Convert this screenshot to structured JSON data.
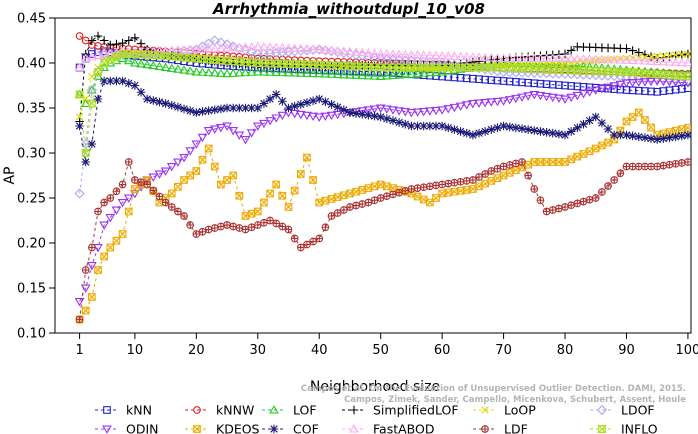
{
  "chart_data": {
    "type": "line",
    "title": "Arrhythmia_withoutdupl_10_v08",
    "xlabel": "Neighborhood size",
    "ylabel": "AP",
    "xlim": [
      1,
      100
    ],
    "ylim": [
      0.1,
      0.45
    ],
    "x_ticks": [
      1,
      10,
      20,
      30,
      40,
      50,
      60,
      70,
      80,
      90,
      100
    ],
    "y_ticks": [
      0.1,
      0.15,
      0.2,
      0.25,
      0.3,
      0.35,
      0.4,
      0.45
    ],
    "y_tick_labels": [
      "0.10",
      "0.15",
      "0.20",
      "0.25",
      "0.30",
      "0.35",
      "0.40",
      "0.45"
    ],
    "grid": false,
    "legend_position": "bottom",
    "watermark": [
      "Campos et al. On the Evaluation of Unsupervised Outlier Detection. DAMI, 2015.",
      "Campos, Zimek, Sander, Campello, Micenkova, Schubert, Assent, Houle"
    ],
    "series": [
      {
        "name": "kNN",
        "color": "#2222cc",
        "marker": "square",
        "points": [
          [
            1,
            0.395
          ],
          [
            2,
            0.405
          ],
          [
            3,
            0.41
          ],
          [
            4,
            0.412
          ],
          [
            5,
            0.413
          ],
          [
            6,
            0.412
          ],
          [
            8,
            0.41
          ],
          [
            10,
            0.408
          ],
          [
            15,
            0.405
          ],
          [
            20,
            0.4
          ],
          [
            25,
            0.397
          ],
          [
            30,
            0.395
          ],
          [
            40,
            0.392
          ],
          [
            50,
            0.39
          ],
          [
            60,
            0.385
          ],
          [
            70,
            0.38
          ],
          [
            80,
            0.375
          ],
          [
            90,
            0.37
          ],
          [
            95,
            0.368
          ],
          [
            100,
            0.372
          ]
        ]
      },
      {
        "name": "kNNW",
        "color": "#dd2222",
        "marker": "circle",
        "points": [
          [
            1,
            0.43
          ],
          [
            2,
            0.425
          ],
          [
            3,
            0.42
          ],
          [
            5,
            0.418
          ],
          [
            10,
            0.415
          ],
          [
            15,
            0.413
          ],
          [
            20,
            0.41
          ],
          [
            25,
            0.408
          ],
          [
            30,
            0.405
          ],
          [
            40,
            0.402
          ],
          [
            50,
            0.4
          ],
          [
            60,
            0.398
          ],
          [
            70,
            0.395
          ],
          [
            80,
            0.393
          ],
          [
            90,
            0.39
          ],
          [
            100,
            0.388
          ]
        ]
      },
      {
        "name": "LOF",
        "color": "#22cc22",
        "marker": "triangle",
        "points": [
          [
            1,
            0.365
          ],
          [
            2,
            0.355
          ],
          [
            3,
            0.37
          ],
          [
            4,
            0.385
          ],
          [
            5,
            0.395
          ],
          [
            6,
            0.4
          ],
          [
            8,
            0.405
          ],
          [
            10,
            0.4
          ],
          [
            15,
            0.395
          ],
          [
            20,
            0.39
          ],
          [
            25,
            0.388
          ],
          [
            30,
            0.39
          ],
          [
            40,
            0.388
          ],
          [
            50,
            0.385
          ],
          [
            60,
            0.39
          ],
          [
            70,
            0.4
          ],
          [
            80,
            0.398
          ],
          [
            90,
            0.392
          ],
          [
            100,
            0.387
          ]
        ]
      },
      {
        "name": "SimplifiedLOF",
        "color": "#000000",
        "marker": "plus",
        "points": [
          [
            1,
            0.335
          ],
          [
            2,
            0.41
          ],
          [
            3,
            0.425
          ],
          [
            4,
            0.43
          ],
          [
            5,
            0.425
          ],
          [
            6,
            0.42
          ],
          [
            8,
            0.422
          ],
          [
            10,
            0.428
          ],
          [
            12,
            0.415
          ],
          [
            15,
            0.41
          ],
          [
            20,
            0.405
          ],
          [
            25,
            0.4
          ],
          [
            30,
            0.398
          ],
          [
            40,
            0.396
          ],
          [
            50,
            0.398
          ],
          [
            60,
            0.397
          ],
          [
            70,
            0.405
          ],
          [
            80,
            0.41
          ],
          [
            82,
            0.418
          ],
          [
            90,
            0.416
          ],
          [
            95,
            0.405
          ],
          [
            100,
            0.41
          ]
        ]
      },
      {
        "name": "LoOP",
        "color": "#dddd00",
        "marker": "x",
        "points": [
          [
            1,
            0.34
          ],
          [
            2,
            0.36
          ],
          [
            3,
            0.385
          ],
          [
            5,
            0.405
          ],
          [
            8,
            0.41
          ],
          [
            10,
            0.41
          ],
          [
            15,
            0.408
          ],
          [
            20,
            0.405
          ],
          [
            30,
            0.4
          ],
          [
            40,
            0.398
          ],
          [
            50,
            0.395
          ],
          [
            60,
            0.393
          ],
          [
            70,
            0.398
          ],
          [
            80,
            0.4
          ],
          [
            90,
            0.405
          ],
          [
            100,
            0.41
          ]
        ]
      },
      {
        "name": "LDOF",
        "color": "#aaaaee",
        "marker": "diamond",
        "points": [
          [
            1,
            0.255
          ],
          [
            2,
            0.31
          ],
          [
            3,
            0.37
          ],
          [
            5,
            0.41
          ],
          [
            10,
            0.41
          ],
          [
            15,
            0.412
          ],
          [
            20,
            0.415
          ],
          [
            23,
            0.425
          ],
          [
            30,
            0.41
          ],
          [
            40,
            0.415
          ],
          [
            45,
            0.41
          ],
          [
            50,
            0.405
          ],
          [
            60,
            0.4
          ],
          [
            70,
            0.39
          ],
          [
            80,
            0.388
          ],
          [
            90,
            0.385
          ],
          [
            100,
            0.38
          ]
        ]
      },
      {
        "name": "ODIN",
        "color": "#9933ee",
        "marker": "triangle-down",
        "points": [
          [
            1,
            0.135
          ],
          [
            2,
            0.15
          ],
          [
            3,
            0.175
          ],
          [
            4,
            0.195
          ],
          [
            5,
            0.22
          ],
          [
            8,
            0.245
          ],
          [
            10,
            0.255
          ],
          [
            12,
            0.27
          ],
          [
            15,
            0.28
          ],
          [
            18,
            0.295
          ],
          [
            20,
            0.31
          ],
          [
            22,
            0.325
          ],
          [
            25,
            0.33
          ],
          [
            28,
            0.315
          ],
          [
            30,
            0.33
          ],
          [
            35,
            0.345
          ],
          [
            40,
            0.34
          ],
          [
            45,
            0.345
          ],
          [
            50,
            0.35
          ],
          [
            55,
            0.345
          ],
          [
            60,
            0.348
          ],
          [
            65,
            0.355
          ],
          [
            70,
            0.358
          ],
          [
            75,
            0.365
          ],
          [
            80,
            0.36
          ],
          [
            85,
            0.37
          ],
          [
            90,
            0.378
          ],
          [
            95,
            0.38
          ],
          [
            100,
            0.378
          ]
        ]
      },
      {
        "name": "KDEOS",
        "color": "#eeaa00",
        "marker": "square-x",
        "points": [
          [
            1,
            0.115
          ],
          [
            2,
            0.125
          ],
          [
            3,
            0.14
          ],
          [
            4,
            0.17
          ],
          [
            5,
            0.185
          ],
          [
            6,
            0.195
          ],
          [
            8,
            0.21
          ],
          [
            10,
            0.26
          ],
          [
            12,
            0.27
          ],
          [
            14,
            0.245
          ],
          [
            16,
            0.255
          ],
          [
            18,
            0.27
          ],
          [
            20,
            0.28
          ],
          [
            22,
            0.305
          ],
          [
            24,
            0.265
          ],
          [
            26,
            0.275
          ],
          [
            28,
            0.23
          ],
          [
            30,
            0.235
          ],
          [
            33,
            0.265
          ],
          [
            35,
            0.24
          ],
          [
            38,
            0.295
          ],
          [
            40,
            0.245
          ],
          [
            45,
            0.255
          ],
          [
            50,
            0.265
          ],
          [
            55,
            0.255
          ],
          [
            58,
            0.245
          ],
          [
            60,
            0.255
          ],
          [
            65,
            0.26
          ],
          [
            70,
            0.275
          ],
          [
            75,
            0.29
          ],
          [
            80,
            0.29
          ],
          [
            85,
            0.305
          ],
          [
            88,
            0.315
          ],
          [
            90,
            0.335
          ],
          [
            92,
            0.345
          ],
          [
            95,
            0.32
          ],
          [
            100,
            0.328
          ]
        ]
      },
      {
        "name": "COF",
        "color": "#1a1a77",
        "marker": "asterisk",
        "points": [
          [
            1,
            0.33
          ],
          [
            2,
            0.29
          ],
          [
            3,
            0.31
          ],
          [
            4,
            0.36
          ],
          [
            5,
            0.38
          ],
          [
            8,
            0.38
          ],
          [
            10,
            0.375
          ],
          [
            12,
            0.36
          ],
          [
            15,
            0.355
          ],
          [
            20,
            0.345
          ],
          [
            25,
            0.35
          ],
          [
            30,
            0.35
          ],
          [
            33,
            0.365
          ],
          [
            35,
            0.35
          ],
          [
            40,
            0.36
          ],
          [
            45,
            0.345
          ],
          [
            50,
            0.34
          ],
          [
            55,
            0.33
          ],
          [
            60,
            0.33
          ],
          [
            65,
            0.32
          ],
          [
            70,
            0.33
          ],
          [
            75,
            0.325
          ],
          [
            80,
            0.32
          ],
          [
            85,
            0.34
          ],
          [
            88,
            0.32
          ],
          [
            90,
            0.32
          ],
          [
            95,
            0.315
          ],
          [
            100,
            0.32
          ]
        ]
      },
      {
        "name": "FastABOD",
        "color": "#ffaaee",
        "marker": "triangle",
        "points": [
          [
            1,
            0.395
          ],
          [
            2,
            0.405
          ],
          [
            5,
            0.41
          ],
          [
            10,
            0.412
          ],
          [
            20,
            0.415
          ],
          [
            30,
            0.418
          ],
          [
            40,
            0.415
          ],
          [
            50,
            0.41
          ],
          [
            60,
            0.408
          ],
          [
            70,
            0.405
          ],
          [
            80,
            0.405
          ],
          [
            90,
            0.403
          ],
          [
            100,
            0.4
          ]
        ]
      },
      {
        "name": "LDF",
        "color": "#aa3333",
        "marker": "circle-plus",
        "points": [
          [
            1,
            0.115
          ],
          [
            2,
            0.17
          ],
          [
            3,
            0.195
          ],
          [
            4,
            0.235
          ],
          [
            5,
            0.245
          ],
          [
            6,
            0.25
          ],
          [
            8,
            0.265
          ],
          [
            9,
            0.29
          ],
          [
            10,
            0.27
          ],
          [
            12,
            0.265
          ],
          [
            15,
            0.245
          ],
          [
            18,
            0.23
          ],
          [
            20,
            0.21
          ],
          [
            22,
            0.215
          ],
          [
            25,
            0.22
          ],
          [
            28,
            0.215
          ],
          [
            30,
            0.22
          ],
          [
            32,
            0.225
          ],
          [
            35,
            0.215
          ],
          [
            37,
            0.195
          ],
          [
            40,
            0.205
          ],
          [
            42,
            0.23
          ],
          [
            45,
            0.24
          ],
          [
            48,
            0.245
          ],
          [
            50,
            0.25
          ],
          [
            55,
            0.26
          ],
          [
            60,
            0.265
          ],
          [
            65,
            0.27
          ],
          [
            68,
            0.28
          ],
          [
            70,
            0.285
          ],
          [
            73,
            0.29
          ],
          [
            75,
            0.26
          ],
          [
            77,
            0.235
          ],
          [
            80,
            0.24
          ],
          [
            85,
            0.25
          ],
          [
            88,
            0.27
          ],
          [
            90,
            0.285
          ],
          [
            95,
            0.285
          ],
          [
            100,
            0.29
          ]
        ]
      },
      {
        "name": "INFLO",
        "color": "#aadd22",
        "marker": "hourglass",
        "points": [
          [
            1,
            0.365
          ],
          [
            2,
            0.3
          ],
          [
            3,
            0.355
          ],
          [
            4,
            0.39
          ],
          [
            5,
            0.4
          ],
          [
            8,
            0.41
          ],
          [
            10,
            0.41
          ],
          [
            15,
            0.408
          ],
          [
            20,
            0.405
          ],
          [
            30,
            0.4
          ],
          [
            40,
            0.398
          ],
          [
            50,
            0.395
          ],
          [
            60,
            0.395
          ],
          [
            70,
            0.395
          ],
          [
            80,
            0.392
          ],
          [
            90,
            0.39
          ],
          [
            100,
            0.385
          ]
        ]
      }
    ]
  }
}
